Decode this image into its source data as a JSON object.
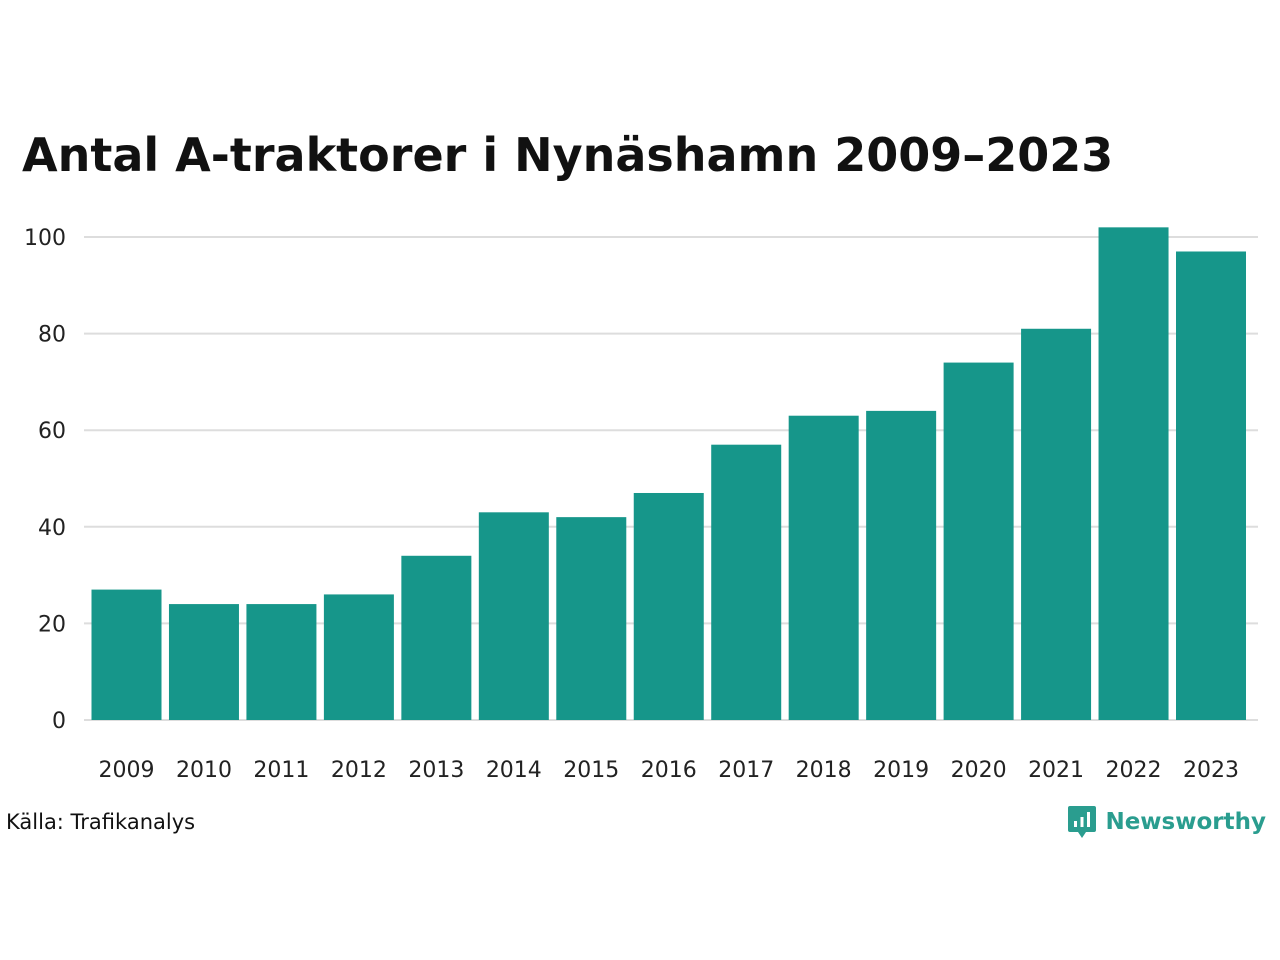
{
  "chart_data": {
    "type": "bar",
    "title": "Antal A-traktorer i Nynäshamn 2009–2023",
    "categories": [
      "2009",
      "2010",
      "2011",
      "2012",
      "2013",
      "2014",
      "2015",
      "2016",
      "2017",
      "2018",
      "2019",
      "2020",
      "2021",
      "2022",
      "2023"
    ],
    "values": [
      27,
      24,
      24,
      26,
      34,
      43,
      42,
      47,
      57,
      63,
      64,
      74,
      81,
      102,
      97
    ],
    "ylim": [
      0,
      100
    ],
    "yticks": [
      0,
      20,
      40,
      60,
      80,
      100
    ],
    "xlabel": "",
    "ylabel": "",
    "grid": true,
    "legend": "none",
    "bar_color": "#16968a",
    "grid_color": "#dddddd"
  },
  "footer": {
    "source": "Källa: Trafikanalys",
    "brand": "Newsworthy",
    "brand_icon": "bar-chart-speech-bubble-icon",
    "brand_color": "#2a9d8f"
  }
}
